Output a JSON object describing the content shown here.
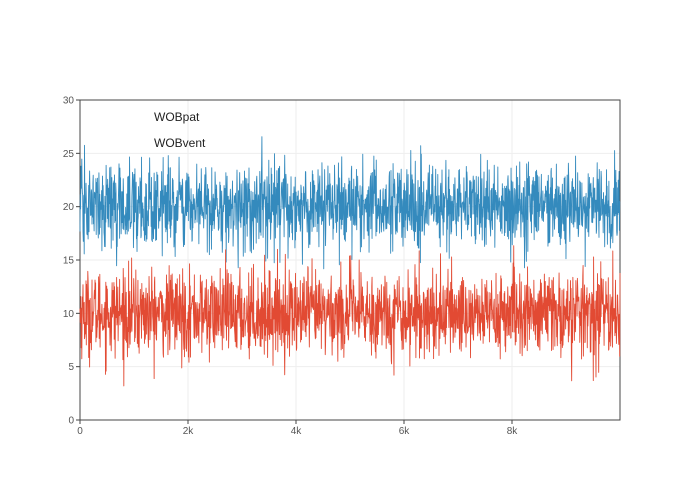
{
  "chart_data": {
    "type": "line",
    "title": "",
    "xlabel": "",
    "ylabel": "",
    "xlim": [
      0,
      10000
    ],
    "ylim": [
      0,
      30
    ],
    "x_ticks": [
      0,
      2000,
      4000,
      6000,
      8000
    ],
    "x_tick_labels": [
      "0",
      "2k",
      "4k",
      "6k",
      "8k"
    ],
    "y_ticks": [
      0,
      5,
      10,
      15,
      20,
      25,
      30
    ],
    "y_tick_labels": [
      "0",
      "5",
      "10",
      "15",
      "20",
      "25",
      "30"
    ],
    "grid": true,
    "legend_position": "top-left",
    "series": [
      {
        "name": "WOBpat",
        "color": "#e24a33",
        "x_range": [
          0,
          10000
        ],
        "approx_mean": 10,
        "approx_min": 3.2,
        "approx_max": 17.8,
        "note_values": "dense noisy signal, ~10000 samples"
      },
      {
        "name": "WOBvent",
        "color": "#348abd",
        "x_range": [
          0,
          10000
        ],
        "approx_mean": 20,
        "approx_min": 12.5,
        "approx_max": 27.0
      }
    ]
  },
  "legend": {
    "items": [
      {
        "label": "WOBpat"
      },
      {
        "label": "WOBvent"
      }
    ]
  }
}
